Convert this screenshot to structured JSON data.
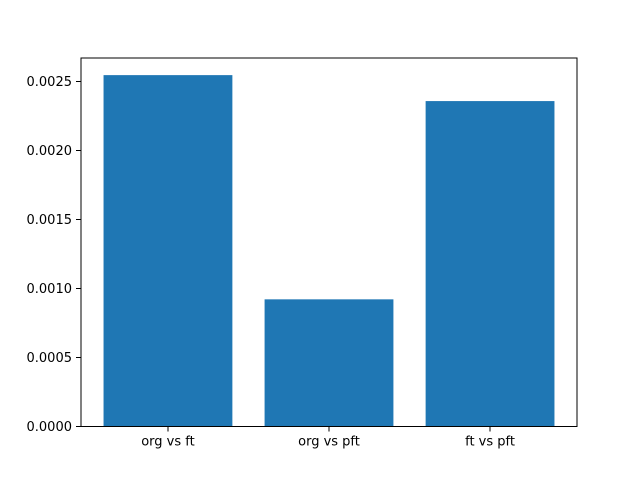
{
  "chart_data": {
    "type": "bar",
    "title": "",
    "xlabel": "",
    "ylabel": "",
    "categories": [
      "org vs ft",
      "org vs pft",
      "ft vs pft"
    ],
    "values": [
      0.002545,
      0.000921,
      0.002357
    ],
    "bar_color": "#1f77b4",
    "bar_width_fraction": 0.8,
    "xlim": [
      -0.54,
      2.54
    ],
    "ylim": [
      0.0,
      0.002669
    ],
    "yticks": [
      0.0,
      0.0005,
      0.001,
      0.0015,
      0.002,
      0.0025
    ],
    "ytick_labels": [
      "0.0000",
      "0.0005",
      "0.0010",
      "0.0015",
      "0.0020",
      "0.0025"
    ],
    "grid": false,
    "legend": null,
    "axes_facecolor": "#ffffff",
    "figure_facecolor": "#ffffff",
    "spine_color": "#000000",
    "tick_color": "#000000"
  }
}
